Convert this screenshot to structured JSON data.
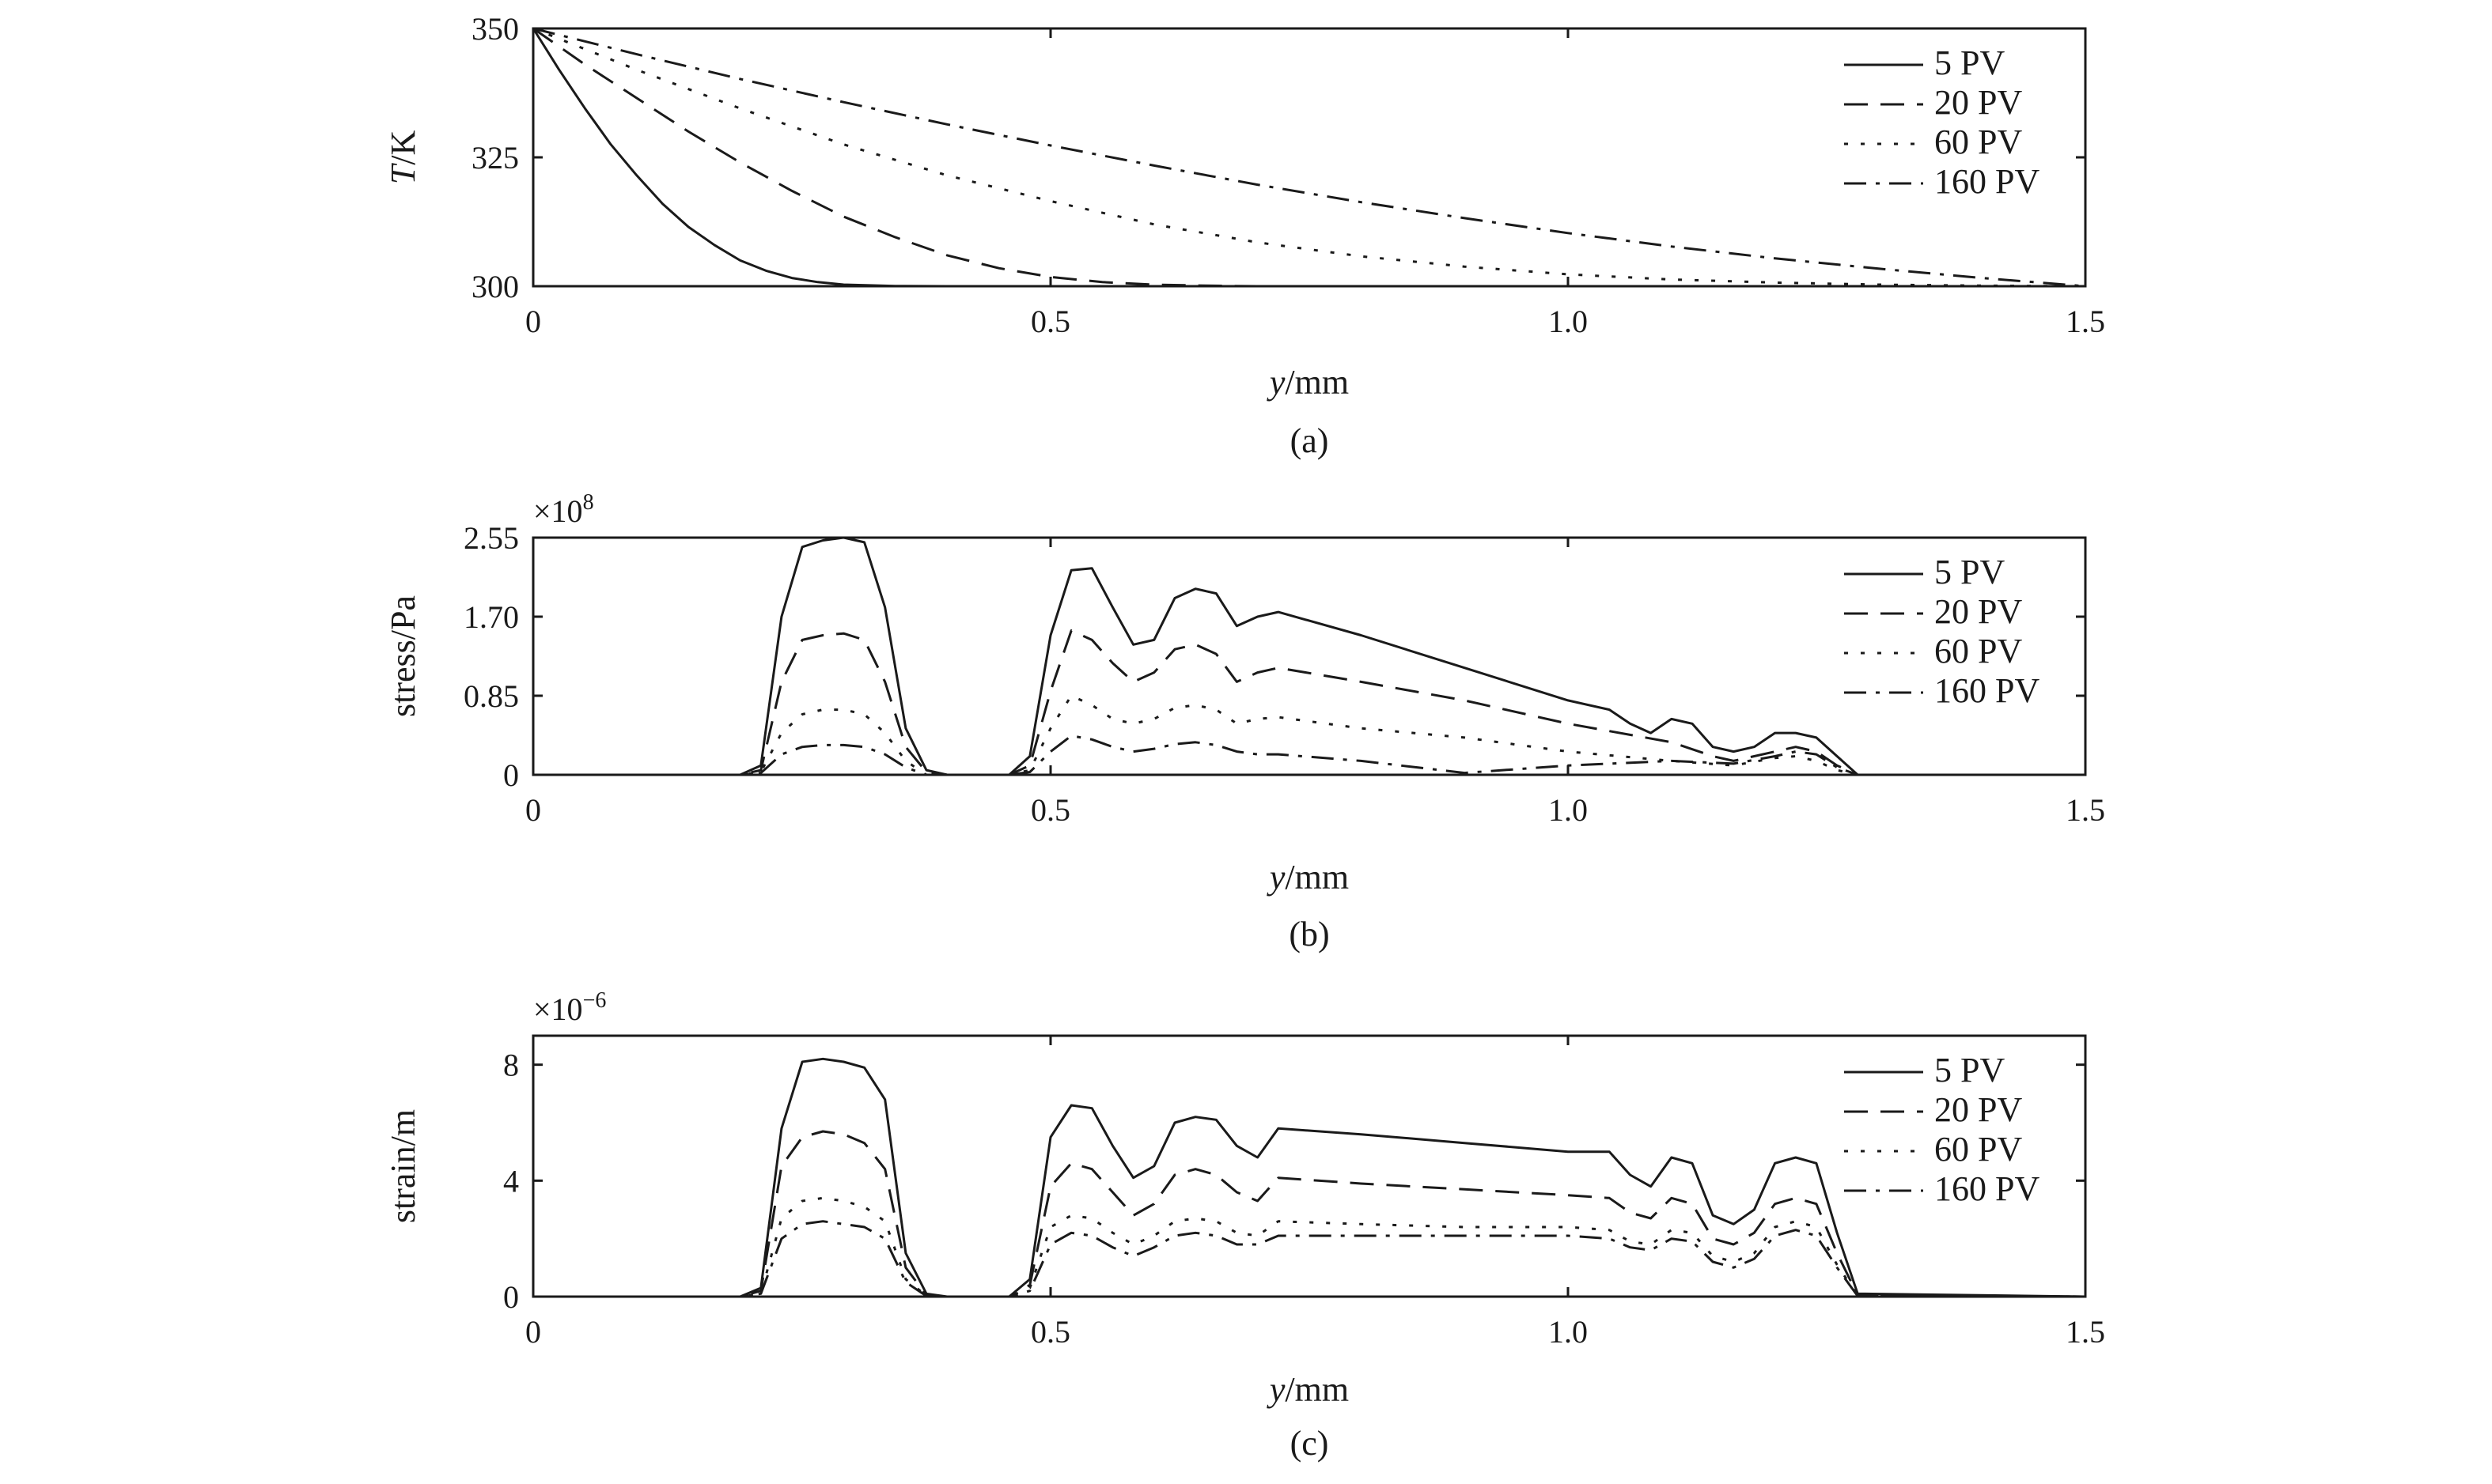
{
  "chart_data": [
    {
      "type": "line",
      "panel": "(a)",
      "xlabel_italic": "y",
      "xlabel_unit": "/mm",
      "ylabel_italic": "T",
      "ylabel_unit": "/K",
      "multiplier": "",
      "multiplier_exp": "",
      "xlim": [
        0,
        1.5
      ],
      "ylim": [
        300,
        350
      ],
      "xticks": [
        "0",
        "0.5",
        "1.0",
        "1.5"
      ],
      "xtick_values": [
        0,
        0.5,
        1.0,
        1.5
      ],
      "yticks": [
        "300",
        "325",
        "350"
      ],
      "ytick_values": [
        300,
        325,
        350
      ],
      "legend_position": "top-right",
      "series": [
        {
          "name": "5 PV",
          "style": "solid",
          "x": [
            0,
            0.025,
            0.05,
            0.075,
            0.1,
            0.125,
            0.15,
            0.175,
            0.2,
            0.225,
            0.25,
            0.275,
            0.3,
            0.35,
            0.4,
            1.5
          ],
          "y": [
            350,
            342,
            334.5,
            327.5,
            321.5,
            316,
            311.5,
            308,
            305,
            303,
            301.6,
            300.8,
            300.3,
            300.05,
            300,
            300
          ]
        },
        {
          "name": "20 PV",
          "style": "dashed",
          "x": [
            0,
            0.05,
            0.1,
            0.15,
            0.2,
            0.25,
            0.3,
            0.35,
            0.4,
            0.45,
            0.5,
            0.55,
            0.6,
            0.65,
            0.7,
            1.5
          ],
          "y": [
            350,
            343,
            336.5,
            330,
            324,
            318.5,
            313.5,
            309.5,
            306,
            303.5,
            301.8,
            300.8,
            300.3,
            300.1,
            300,
            300
          ]
        },
        {
          "name": "60 PV",
          "style": "dotted",
          "x": [
            0,
            0.1,
            0.2,
            0.3,
            0.4,
            0.5,
            0.6,
            0.7,
            0.8,
            0.9,
            1.0,
            1.1,
            1.2,
            1.3,
            1.4,
            1.5
          ],
          "y": [
            350,
            342,
            334.5,
            327.5,
            321.5,
            316.5,
            312,
            308.5,
            305.8,
            303.8,
            302.3,
            301.3,
            300.7,
            300.3,
            300.1,
            300
          ]
        },
        {
          "name": "160 PV",
          "style": "dashdot",
          "x": [
            0,
            0.1,
            0.2,
            0.3,
            0.4,
            0.5,
            0.6,
            0.7,
            0.8,
            0.9,
            1.0,
            1.1,
            1.2,
            1.3,
            1.4,
            1.5
          ],
          "y": [
            350,
            345,
            340.2,
            335.7,
            331.4,
            327.3,
            323.4,
            319.7,
            316.3,
            313.2,
            310.3,
            307.7,
            305.4,
            303.4,
            301.6,
            300
          ]
        }
      ]
    },
    {
      "type": "line",
      "panel": "(b)",
      "xlabel_italic": "y",
      "xlabel_unit": "/mm",
      "ylabel_italic": "",
      "ylabel_unit": "stress/Pa",
      "multiplier": "×10",
      "multiplier_exp": "8",
      "xlim": [
        0,
        1.5
      ],
      "ylim": [
        0,
        2.55
      ],
      "xticks": [
        "0",
        "0.5",
        "1.0",
        "1.5"
      ],
      "xtick_values": [
        0,
        0.5,
        1.0,
        1.5
      ],
      "yticks": [
        "0",
        "0.85",
        "1.70",
        "2.55"
      ],
      "ytick_values": [
        0,
        0.85,
        1.7,
        2.55
      ],
      "legend_position": "top-right",
      "series": [
        {
          "name": "5 PV",
          "style": "solid",
          "x": [
            0,
            0.2,
            0.22,
            0.24,
            0.26,
            0.28,
            0.3,
            0.32,
            0.34,
            0.36,
            0.38,
            0.4,
            0.46,
            0.48,
            0.5,
            0.52,
            0.54,
            0.56,
            0.58,
            0.6,
            0.62,
            0.64,
            0.66,
            0.68,
            0.7,
            0.72,
            0.8,
            0.9,
            1.0,
            1.04,
            1.06,
            1.08,
            1.1,
            1.12,
            1.14,
            1.16,
            1.18,
            1.2,
            1.22,
            1.24,
            1.26,
            1.28,
            1.5
          ],
          "y": [
            0,
            0,
            0.1,
            1.7,
            2.45,
            2.52,
            2.55,
            2.5,
            1.8,
            0.5,
            0.05,
            0,
            0,
            0.2,
            1.5,
            2.2,
            2.22,
            1.8,
            1.4,
            1.45,
            1.9,
            2.0,
            1.95,
            1.6,
            1.7,
            1.75,
            1.5,
            1.15,
            0.8,
            0.7,
            0.55,
            0.45,
            0.6,
            0.55,
            0.3,
            0.25,
            0.3,
            0.45,
            0.45,
            0.4,
            0.2,
            0,
            0
          ]
        },
        {
          "name": "20 PV",
          "style": "dashed",
          "x": [
            0,
            0.2,
            0.22,
            0.24,
            0.26,
            0.28,
            0.3,
            0.32,
            0.34,
            0.36,
            0.38,
            0.4,
            0.46,
            0.48,
            0.5,
            0.52,
            0.54,
            0.56,
            0.58,
            0.6,
            0.62,
            0.64,
            0.66,
            0.68,
            0.7,
            0.72,
            0.8,
            0.9,
            1.0,
            1.1,
            1.14,
            1.16,
            1.2,
            1.22,
            1.24,
            1.26,
            1.28,
            1.5
          ],
          "y": [
            0,
            0,
            0.05,
            1.0,
            1.45,
            1.5,
            1.52,
            1.45,
            1.0,
            0.3,
            0.03,
            0,
            0,
            0.1,
            0.9,
            1.55,
            1.45,
            1.2,
            1.0,
            1.1,
            1.35,
            1.4,
            1.3,
            1.0,
            1.1,
            1.15,
            1.0,
            0.8,
            0.55,
            0.35,
            0.2,
            0.15,
            0.25,
            0.3,
            0.25,
            0.1,
            0,
            0
          ]
        },
        {
          "name": "60 PV",
          "style": "dotted",
          "x": [
            0,
            0.2,
            0.22,
            0.24,
            0.26,
            0.28,
            0.3,
            0.32,
            0.34,
            0.36,
            0.38,
            0.46,
            0.48,
            0.5,
            0.52,
            0.54,
            0.56,
            0.58,
            0.6,
            0.62,
            0.64,
            0.66,
            0.68,
            0.7,
            0.72,
            0.8,
            0.9,
            1.0,
            1.1,
            1.16,
            1.2,
            1.22,
            1.24,
            1.26,
            1.28,
            1.5
          ],
          "y": [
            0,
            0,
            0.03,
            0.45,
            0.65,
            0.7,
            0.7,
            0.65,
            0.45,
            0.15,
            0,
            0,
            0.05,
            0.5,
            0.85,
            0.75,
            0.6,
            0.55,
            0.6,
            0.72,
            0.75,
            0.7,
            0.55,
            0.6,
            0.62,
            0.5,
            0.4,
            0.25,
            0.15,
            0.1,
            0.18,
            0.2,
            0.15,
            0.05,
            0,
            0
          ]
        },
        {
          "name": "160 PV",
          "style": "dashdot",
          "x": [
            0,
            0.2,
            0.22,
            0.24,
            0.26,
            0.28,
            0.3,
            0.32,
            0.34,
            0.36,
            0.38,
            0.46,
            0.48,
            0.5,
            0.52,
            0.54,
            0.56,
            0.58,
            0.6,
            0.62,
            0.64,
            0.66,
            0.68,
            0.7,
            0.72,
            0.8,
            0.9,
            1.0,
            1.1,
            1.16,
            1.2,
            1.22,
            1.24,
            1.26,
            1.28,
            1.5
          ],
          "y": [
            0,
            0,
            0.02,
            0.22,
            0.3,
            0.32,
            0.32,
            0.3,
            0.22,
            0.08,
            0,
            0,
            0.03,
            0.25,
            0.42,
            0.38,
            0.3,
            0.25,
            0.28,
            0.33,
            0.35,
            0.32,
            0.25,
            0.22,
            0.22,
            0.15,
            0.02,
            0.1,
            0.15,
            0.12,
            0.2,
            0.25,
            0.22,
            0.08,
            0,
            0
          ]
        }
      ]
    },
    {
      "type": "line",
      "panel": "(c)",
      "xlabel_italic": "y",
      "xlabel_unit": "/mm",
      "ylabel_italic": "",
      "ylabel_unit": "strain/m",
      "multiplier": "×10",
      "multiplier_exp": "−6",
      "xlim": [
        0,
        1.5
      ],
      "ylim": [
        0,
        9
      ],
      "xticks": [
        "0",
        "0.5",
        "1.0",
        "1.5"
      ],
      "xtick_values": [
        0,
        0.5,
        1.0,
        1.5
      ],
      "yticks": [
        "0",
        "4",
        "8"
      ],
      "ytick_values": [
        0,
        4,
        8
      ],
      "legend_position": "top-right",
      "series": [
        {
          "name": "5 PV",
          "style": "solid",
          "x": [
            0,
            0.2,
            0.22,
            0.24,
            0.26,
            0.28,
            0.3,
            0.32,
            0.34,
            0.36,
            0.38,
            0.4,
            0.46,
            0.48,
            0.5,
            0.52,
            0.54,
            0.56,
            0.58,
            0.6,
            0.62,
            0.64,
            0.66,
            0.68,
            0.7,
            0.72,
            0.8,
            0.9,
            1.0,
            1.04,
            1.06,
            1.08,
            1.1,
            1.12,
            1.14,
            1.16,
            1.18,
            1.2,
            1.22,
            1.24,
            1.26,
            1.28,
            1.5
          ],
          "y": [
            0,
            0,
            0.3,
            5.8,
            8.1,
            8.2,
            8.1,
            7.9,
            6.8,
            1.5,
            0.1,
            0,
            0,
            0.6,
            5.5,
            6.6,
            6.5,
            5.2,
            4.1,
            4.5,
            6.0,
            6.2,
            6.1,
            5.2,
            4.8,
            5.8,
            5.6,
            5.3,
            5.0,
            5.0,
            4.2,
            3.8,
            4.8,
            4.6,
            2.8,
            2.5,
            3.0,
            4.6,
            4.8,
            4.6,
            2.2,
            0.1,
            0
          ]
        },
        {
          "name": "20 PV",
          "style": "dashed",
          "x": [
            0,
            0.2,
            0.22,
            0.24,
            0.26,
            0.28,
            0.3,
            0.32,
            0.34,
            0.36,
            0.38,
            0.4,
            0.46,
            0.48,
            0.5,
            0.52,
            0.54,
            0.56,
            0.58,
            0.6,
            0.62,
            0.64,
            0.66,
            0.68,
            0.7,
            0.72,
            0.8,
            0.9,
            1.0,
            1.04,
            1.06,
            1.08,
            1.1,
            1.12,
            1.14,
            1.16,
            1.18,
            1.2,
            1.22,
            1.24,
            1.26,
            1.28,
            1.5
          ],
          "y": [
            0,
            0,
            0.2,
            4.5,
            5.5,
            5.7,
            5.6,
            5.3,
            4.4,
            1.0,
            0.05,
            0,
            0,
            0.4,
            3.8,
            4.6,
            4.4,
            3.6,
            2.8,
            3.2,
            4.2,
            4.4,
            4.2,
            3.6,
            3.3,
            4.1,
            3.9,
            3.7,
            3.5,
            3.4,
            2.9,
            2.7,
            3.4,
            3.2,
            2.0,
            1.8,
            2.2,
            3.2,
            3.4,
            3.2,
            1.5,
            0.05,
            0
          ]
        },
        {
          "name": "60 PV",
          "style": "dotted",
          "x": [
            0,
            0.2,
            0.22,
            0.24,
            0.26,
            0.28,
            0.3,
            0.32,
            0.34,
            0.36,
            0.38,
            0.4,
            0.46,
            0.48,
            0.5,
            0.52,
            0.54,
            0.56,
            0.58,
            0.6,
            0.62,
            0.64,
            0.66,
            0.68,
            0.7,
            0.72,
            0.8,
            0.9,
            1.0,
            1.04,
            1.06,
            1.08,
            1.1,
            1.12,
            1.14,
            1.16,
            1.18,
            1.2,
            1.22,
            1.24,
            1.26,
            1.28,
            1.5
          ],
          "y": [
            0,
            0,
            0.1,
            2.7,
            3.3,
            3.4,
            3.3,
            3.1,
            2.6,
            0.6,
            0.03,
            0,
            0,
            0.3,
            2.4,
            2.8,
            2.7,
            2.2,
            1.8,
            2.1,
            2.6,
            2.7,
            2.6,
            2.2,
            2.1,
            2.6,
            2.5,
            2.4,
            2.4,
            2.3,
            1.9,
            1.8,
            2.3,
            2.2,
            1.4,
            1.2,
            1.5,
            2.4,
            2.6,
            2.4,
            1.1,
            0.03,
            0
          ]
        },
        {
          "name": "160 PV",
          "style": "dashdot",
          "x": [
            0,
            0.2,
            0.22,
            0.24,
            0.26,
            0.28,
            0.3,
            0.32,
            0.34,
            0.36,
            0.38,
            0.4,
            0.46,
            0.48,
            0.5,
            0.52,
            0.54,
            0.56,
            0.58,
            0.6,
            0.62,
            0.64,
            0.66,
            0.68,
            0.7,
            0.72,
            0.8,
            0.9,
            1.0,
            1.04,
            1.06,
            1.08,
            1.1,
            1.12,
            1.14,
            1.16,
            1.18,
            1.2,
            1.22,
            1.24,
            1.26,
            1.28,
            1.5
          ],
          "y": [
            0,
            0,
            0.1,
            2.0,
            2.5,
            2.6,
            2.5,
            2.4,
            2.0,
            0.5,
            0.02,
            0,
            0,
            0.2,
            1.8,
            2.2,
            2.1,
            1.7,
            1.4,
            1.7,
            2.1,
            2.2,
            2.1,
            1.8,
            1.8,
            2.1,
            2.1,
            2.1,
            2.1,
            2.0,
            1.7,
            1.6,
            2.0,
            1.9,
            1.2,
            1.0,
            1.3,
            2.1,
            2.3,
            2.1,
            1.0,
            0.02,
            0
          ]
        }
      ]
    }
  ]
}
